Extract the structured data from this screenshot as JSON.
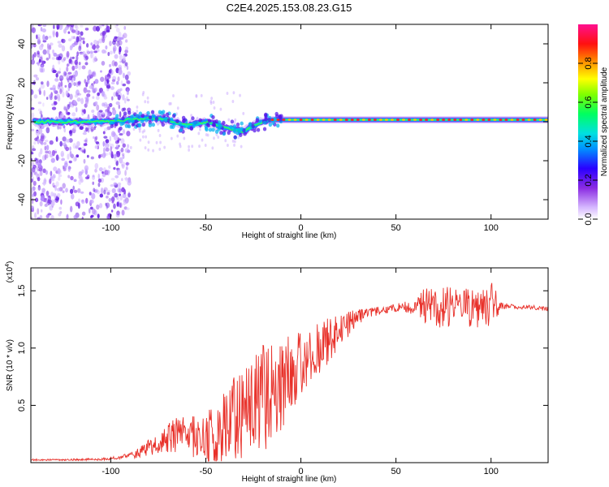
{
  "title": "C2E4.2025.153.08.23.G15",
  "colors": {
    "snr_line": "#e8312a",
    "ridge_blue": "#2200ff",
    "ridge_cyan": "#00d8e8",
    "ridge_green": "#00ff40",
    "ridge_red": "#ff2020",
    "noise": "#9a58f0"
  },
  "colorbar": {
    "label": "Normalized spectral amplitude",
    "ticks": [
      "0.0",
      "0.2",
      "0.4",
      "0.6",
      "0.8"
    ],
    "tick_values": [
      0,
      0.2,
      0.4,
      0.6,
      0.8
    ]
  },
  "chart_data": [
    {
      "type": "heatmap",
      "xlabel": "Height of straight line (km)",
      "ylabel": "Frequency (Hz)",
      "xlim": [
        -142,
        130
      ],
      "ylim": [
        -50,
        50
      ],
      "xticks": [
        "-100",
        "-50",
        "0",
        "50",
        "100"
      ],
      "xtick_values": [
        -100,
        -50,
        0,
        50,
        100
      ],
      "yticks": [
        "-40",
        "-20",
        "0",
        "20",
        "40"
      ],
      "ytick_values": [
        -40,
        -20,
        0,
        20,
        40
      ],
      "ridge": {
        "x": [
          -140,
          -125,
          -110,
          -100,
          -90,
          -80,
          -70,
          -60,
          -50,
          -40,
          -30,
          -25,
          -20,
          -15,
          -10,
          -5,
          0,
          10,
          20,
          40,
          60,
          80,
          100,
          130
        ],
        "y": [
          0,
          0,
          0,
          0,
          1,
          2,
          1,
          -2,
          0,
          -3,
          -5,
          -2,
          0,
          1,
          1,
          1,
          1,
          1,
          1,
          1,
          1,
          1,
          1,
          1
        ]
      }
    },
    {
      "type": "line",
      "xlabel": "Height of straight line (km)",
      "ylabel": "SNR (10 * v/v)",
      "yunit_label": "(x10",
      "yunit_exponent": "4",
      "xlim": [
        -142,
        130
      ],
      "ylim": [
        0,
        17000
      ],
      "xticks": [
        "-100",
        "-50",
        "0",
        "50",
        "100"
      ],
      "xtick_values": [
        -100,
        -50,
        0,
        50,
        100
      ],
      "yticks": [
        "0.5",
        "1.0",
        "1.5"
      ],
      "ytick_values": [
        5000,
        10000,
        15000
      ],
      "series": [
        {
          "x": [
            -142,
            -130,
            -120,
            -110,
            -100,
            -95,
            -90,
            -85,
            -80,
            -75,
            -70,
            -65,
            -60,
            -55,
            -50,
            -45,
            -40,
            -35,
            -30,
            -25,
            -20,
            -15,
            -10,
            -5,
            0,
            5,
            10,
            15,
            20,
            25,
            30,
            35,
            40,
            45,
            50,
            55,
            60,
            65,
            70,
            75,
            80,
            85,
            90,
            95,
            100,
            105,
            110,
            115,
            120,
            125,
            130
          ],
          "values": [
            250,
            250,
            260,
            280,
            350,
            450,
            600,
            900,
            1300,
            1700,
            2100,
            2300,
            2400,
            2300,
            2200,
            2600,
            3000,
            3700,
            4500,
            5300,
            6000,
            6500,
            7000,
            7800,
            8500,
            9200,
            10000,
            10700,
            11300,
            12000,
            12600,
            13000,
            13200,
            13400,
            13500,
            13600,
            13700,
            13700,
            13800,
            13700,
            13700,
            13600,
            13500,
            13500,
            13500,
            13600,
            13600,
            13600,
            13600,
            13500,
            13400
          ],
          "spread": [
            80,
            80,
            80,
            100,
            150,
            200,
            300,
            450,
            700,
            900,
            1300,
            1700,
            1900,
            2000,
            2200,
            2600,
            3200,
            3800,
            4200,
            4600,
            5200,
            4800,
            4200,
            3500,
            3000,
            2600,
            2300,
            2000,
            1600,
            1200,
            800,
            500,
            400,
            350,
            350,
            500,
            800,
            1600,
            2000,
            2000,
            1800,
            1700,
            1700,
            1800,
            2600,
            400,
            250,
            200,
            200,
            200,
            200
          ]
        }
      ]
    }
  ]
}
